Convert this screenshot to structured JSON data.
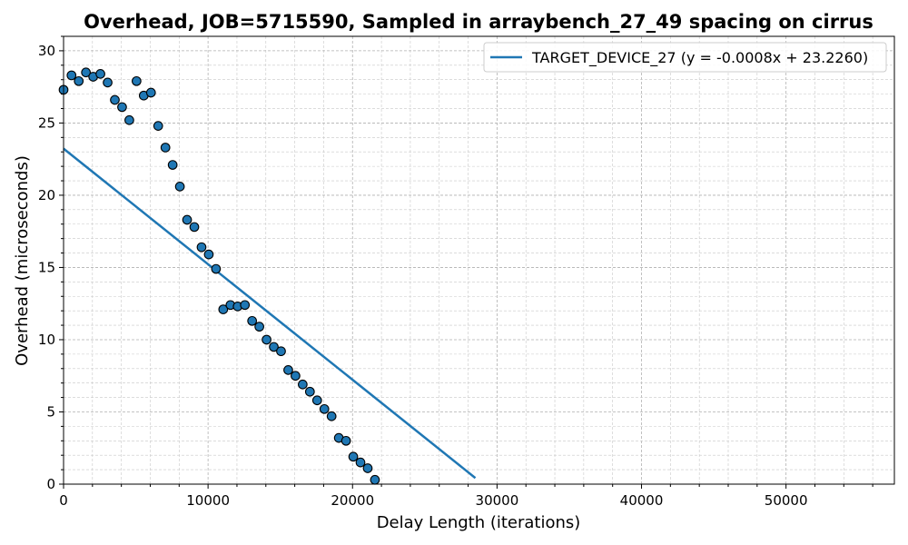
{
  "chart_data": {
    "type": "scatter",
    "title": "Overhead, JOB=5715590, Sampled in arraybench_27_49 spacing on cirrus",
    "xlabel": "Delay Length (iterations)",
    "ylabel": "Overhead (microseconds)",
    "xlim": [
      0,
      57500
    ],
    "ylim": [
      0,
      31
    ],
    "grid": true,
    "legend_position": "top-right",
    "xticks": [
      "0",
      "10000",
      "20000",
      "30000",
      "40000",
      "50000"
    ],
    "yticks": [
      "0",
      "5",
      "10",
      "15",
      "20",
      "25",
      "30"
    ],
    "series": [
      {
        "kind": "scatter",
        "color": "#1f77b4",
        "x": [
          0,
          550,
          1050,
          1550,
          2050,
          2550,
          3050,
          3550,
          4050,
          4550,
          5050,
          5550,
          6050,
          6550,
          7050,
          7550,
          8050,
          8550,
          9050,
          9550,
          10050,
          10550,
          11050,
          11550,
          12050,
          12550,
          13050,
          13550,
          14050,
          14550,
          15050,
          15550,
          16050,
          16550,
          17050,
          17550,
          18050,
          18550,
          19050,
          19550,
          20050,
          20550,
          21050,
          21550
        ],
        "y": [
          27.3,
          28.3,
          27.9,
          28.5,
          28.2,
          28.4,
          27.8,
          26.6,
          26.1,
          25.2,
          27.9,
          26.9,
          27.1,
          24.8,
          23.3,
          22.1,
          20.6,
          18.3,
          17.8,
          16.4,
          15.9,
          14.9,
          12.1,
          12.4,
          12.3,
          12.4,
          11.3,
          10.9,
          10.0,
          9.5,
          9.2,
          7.9,
          7.5,
          6.9,
          6.4,
          5.8,
          5.2,
          4.7,
          3.2,
          3.0,
          1.9,
          1.5,
          1.1,
          0.3
        ]
      },
      {
        "kind": "line",
        "name": "TARGET_DEVICE_27 (y = -0.0008x + 23.2260)",
        "color": "#1f77b4",
        "slope": -0.0008,
        "intercept": 23.226,
        "x_start": 0,
        "x_end": 28500
      }
    ]
  }
}
